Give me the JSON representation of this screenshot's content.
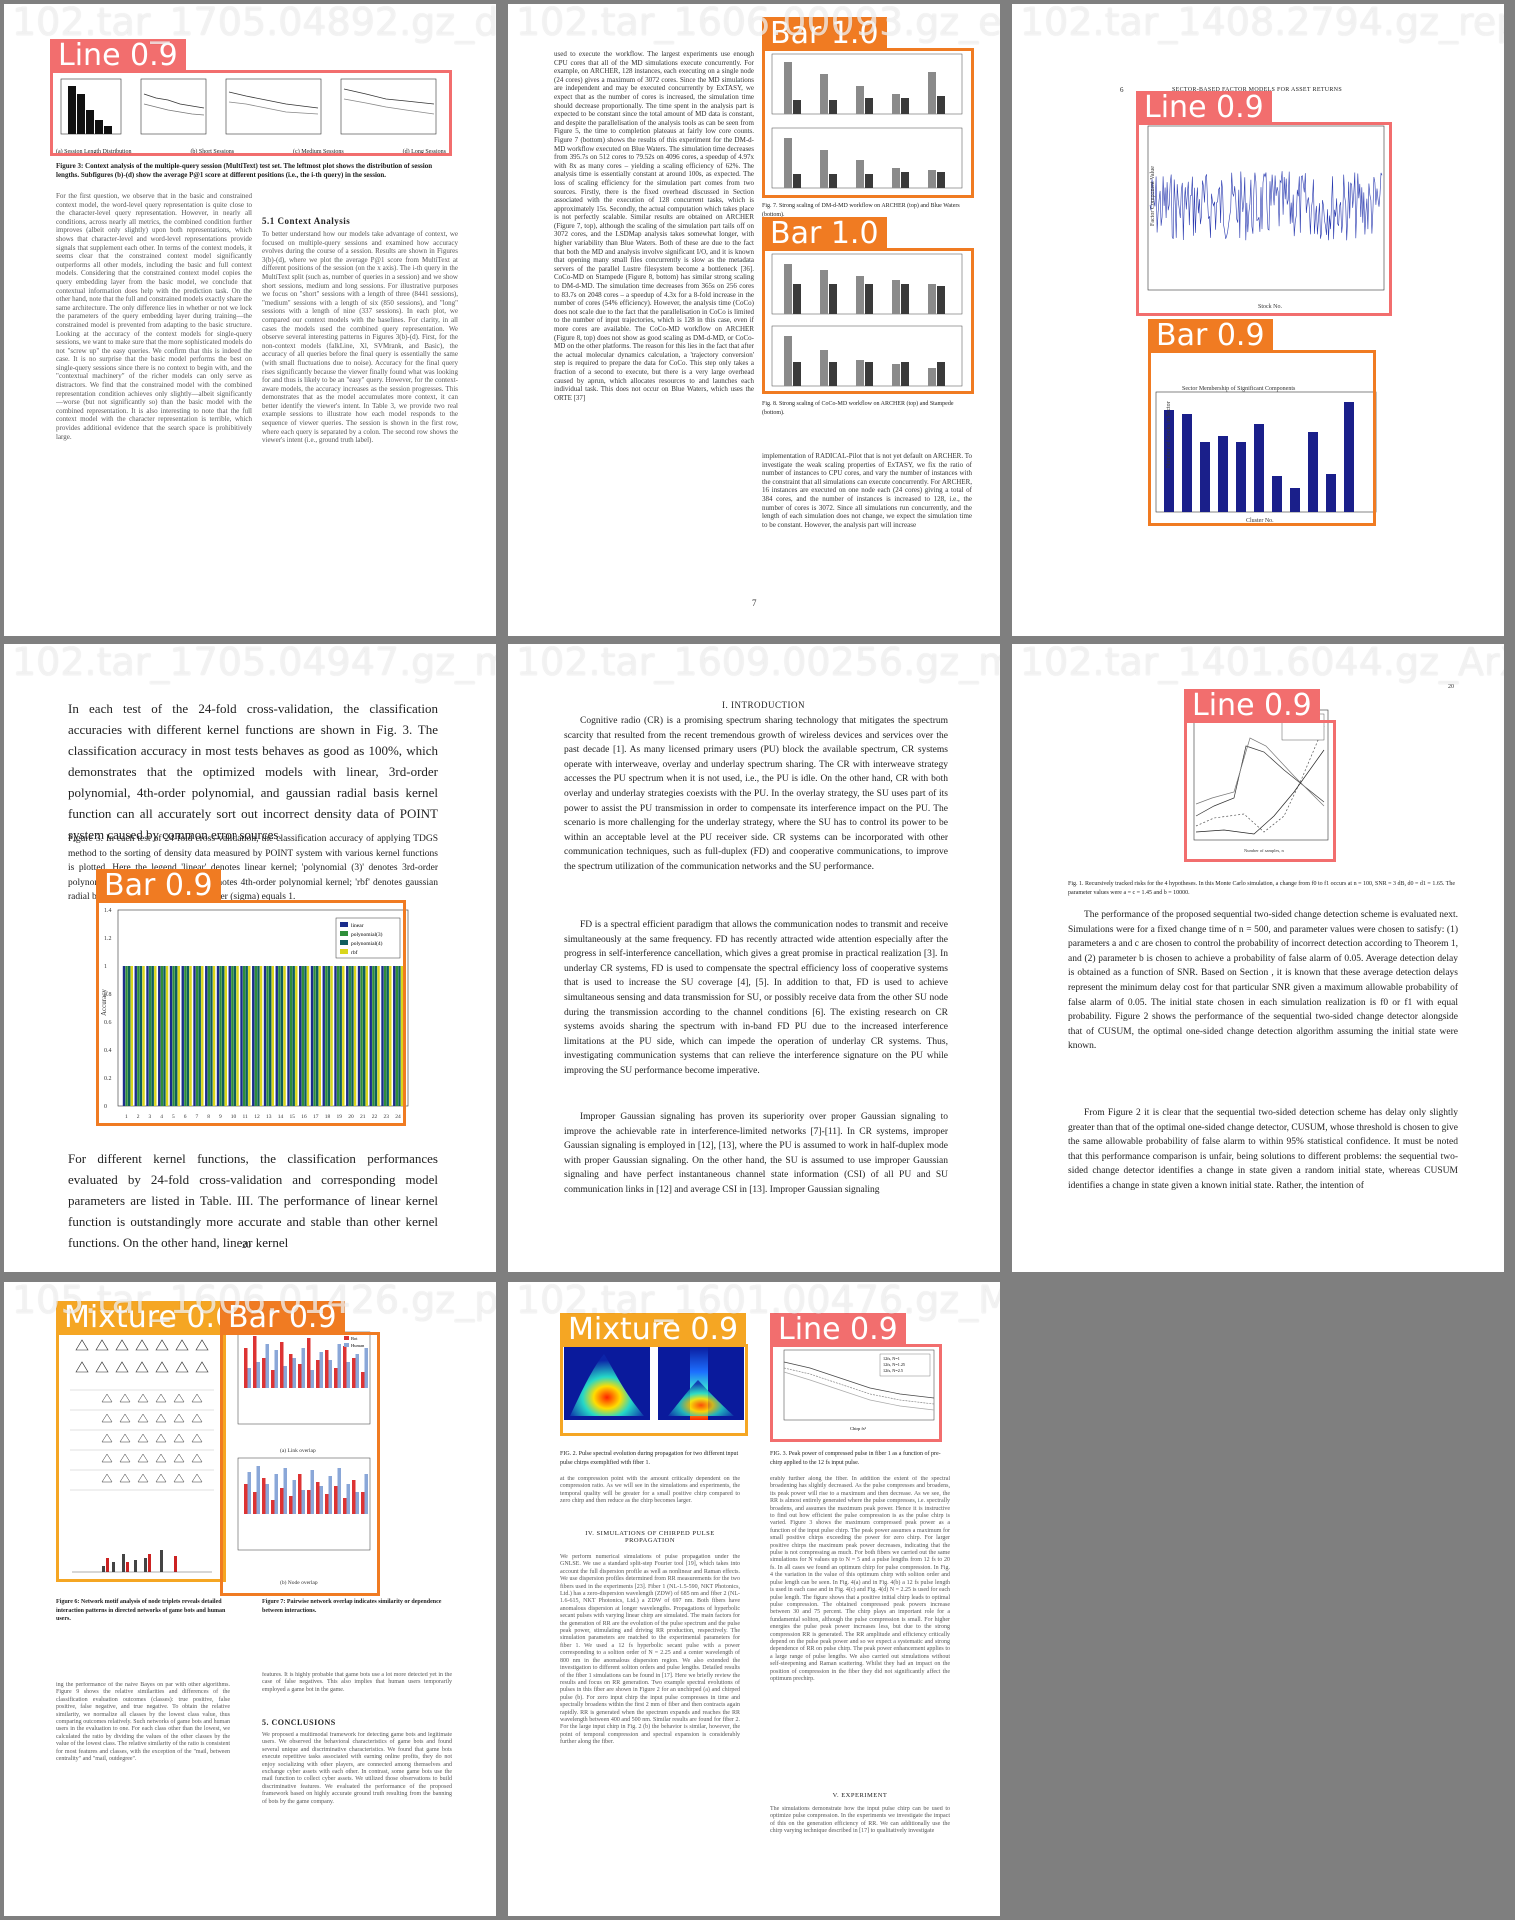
{
  "panels": [
    {
      "title": "102.tar_1705.04892.gz_deep-voice-arxiv_6"
    },
    {
      "title": "102.tar_1606.00093.gz_extasy_6"
    },
    {
      "title": "102.tar_1408.2794.gz_report_5_"
    },
    {
      "title": "102.tar_1705.04947.gz_manuscript_TDGS_10"
    },
    {
      "title": "102.tar_1609.00256.gz_mgaafar_full_duplex"
    },
    {
      "title": "102.tar_1401.6044.gz_ArXiv_two_"
    },
    {
      "title": "105.tar_1606.01426.gz_paper_7_"
    },
    {
      "title": "102.tar_1601.00476.gz_McLenaghanKoenig_1_2"
    }
  ],
  "detections": {
    "p1_line": "Line 0.9",
    "p2_bar_top": "Bar 1.0",
    "p2_bar_bottom": "Bar 1.0",
    "p3_line": "Line 0.9",
    "p3_bar": "Bar 0.9",
    "p4_bar": "Bar 0.9",
    "p6_line": "Line 0.9",
    "p7_mix": "Mixture 0.6",
    "p7_bar": "Bar 0.9",
    "p8_mix": "Mixture 0.9",
    "p8_line": "Line 0.9"
  },
  "p1": {
    "fig_labels": [
      "(a) Session Length Distribution",
      "(b) Short Sessions",
      "(c) Medium Sessions",
      "(d) Long Sessions"
    ],
    "caption": "Figure 3: Context analysis of the multiple-query session (MultiText) test set. The leftmost plot shows the distribution of session lengths. Subfigures (b)-(d) show the average P@1 score at different positions (i.e., the i-th query) in the session.",
    "section": "5.1 Context Analysis"
  },
  "p2": {
    "page_number": "7",
    "fig7_caption": "Fig. 7. Strong scaling of DM-d-MD workflow on ARCHER (top) and Blue Waters (bottom).",
    "fig8_caption": "Fig. 8. Strong scaling of CoCo-MD workflow on ARCHER (top) and Stampede (bottom).",
    "fig7_title": "Figure 7",
    "text_top": "used to execute the workflow. The largest experiments use enough CPU cores that all of the MD simulations execute concurrently."
  },
  "p3": {
    "page_num": "6",
    "header": "SECTOR-BASED FACTOR MODELS FOR ASSET RETURNS",
    "line_xlabel": "Stock No.",
    "line_ylabel": "Factor Component Value",
    "bar_xlabel": "Cluster No.",
    "bar_ylabel": "Number of Stocks in Sector",
    "bar_title": "Sector Membership of Significant Components"
  },
  "p4": {
    "para1": "In each test of the 24-fold cross-validation, the classification accuracies with different kernel functions are shown in Fig. 3. The classification accuracy in most tests behaves as good as 100%, which demonstrates that the optimized models with linear, 3rd-order polynomial, 4th-order polynomial, and gaussian radial basis kernel function can all accurately sort out incorrect density data of POINT system caused by common error sources.",
    "fig_caption": "Figure 3. In each test of 24-fold cross-validation, the classification accuracy of applying TDGS method to the sorting of density data measured by POINT system with various kernel functions is plotted. Here the legend 'linear' denotes linear kernel; 'polynomial (3)' denotes 3rd-order polynomial kernel; 'polynomial (4)' denotes 4th-order polynomial kernel; 'rbf' denotes gaussian radial basis kernel function, the parameter (sigma) equals 1.",
    "para2": "For different kernel functions, the classification performances evaluated by 24-fold cross-validation and corresponding model parameters are listed in Table. III. The performance of linear kernel function is outstandingly more accurate and stable than other kernel functions. On the other hand, linear kernel",
    "page_number": "20",
    "ylabel": "Accuracy",
    "legend": [
      "linear",
      "polynomial(3)",
      "polynomial(4)",
      "rbf"
    ],
    "yticks": [
      "1.4",
      "1.2",
      "1",
      "0.8",
      "0.6",
      "0.4",
      "0.2",
      "0"
    ],
    "xticks": [
      "1",
      "2",
      "3",
      "4",
      "5",
      "6",
      "7",
      "8",
      "9",
      "10",
      "11",
      "12",
      "13",
      "14",
      "15",
      "16",
      "17",
      "18",
      "19",
      "20",
      "21",
      "22",
      "23",
      "24"
    ]
  },
  "p5": {
    "heading": "I. INTRODUCTION",
    "paras": [
      "Cognitive radio (CR) is a promising spectrum sharing technology that mitigates the spectrum scarcity that resulted from the recent tremendous growth of wireless devices and services over the past decade [1]. As many licensed primary users (PU) block the available spectrum, CR systems operate with interweave, overlay and underlay spectrum sharing. The CR with interweave strategy accesses the PU spectrum when it is not used, i.e., the PU is idle. On the other hand, CR with both overlay and underlay strategies coexists with the PU. In the overlay strategy, the SU uses part of its power to assist the PU transmission in order to compensate its interference impact on the PU. The scenario is more challenging for the underlay strategy, where the SU has to control its power to be within an acceptable level at the PU receiver side. CR systems can be incorporated with other communication techniques, such as full-duplex (FD) and cooperative communications, to improve the spectrum utilization of the communication networks and the SU performance.",
      "FD is a spectral efficient paradigm that allows the communication nodes to transmit and receive simultaneously at the same frequency. FD has recently attracted wide attention especially after the progress in self-interference cancellation, which gives a great promise in practical realization [3]. In underlay CR systems, FD is used to compensate the spectral efficiency loss of cooperative systems that is used to increase the SU coverage [4], [5]. In addition to that, FD is used to achieve simultaneous sensing and data transmission for SU, or possibly receive data from the other SU node during the transmission according to the channel conditions [6]. The existing research on CR systems avoids sharing the spectrum with in-band FD PU due to the increased interference limitations at the PU side, which can impede the operation of underlay CR systems. Thus, investigating communication systems that can relieve the interference signature on the PU while improving the SU performance become imperative.",
      "Improper Gaussian signaling has proven its superiority over proper Gaussian signaling to improve the achievable rate in interference-limited networks [7]-[11]. In CR systems, improper Gaussian signaling is employed in [12], [13], where the PU is assumed to work in half-duplex mode with proper Gaussian signaling. On the other hand, the SU is assumed to use improper Gaussian signaling and have perfect instantaneous channel state information (CSI) of all PU and SU communication links in [12] and average CSI in [13]. Improper Gaussian signaling"
    ]
  },
  "p6": {
    "page_number": "20",
    "fig_caption": "Fig. 1. Recursively tracked risks for the 4 hypotheses. In this Monte Carlo simulation, a change from f0 to f1 occurs at n = 100, SNR = 3 dB, d0 = d1 = 1.65. The parameter values were a = c = 1.45 and b = 10000.",
    "xlabel": "Number of samples, n",
    "para1": "The performance of the proposed sequential two-sided change detection scheme is evaluated next. Simulations were for a fixed change time of n = 500, and parameter values were chosen to satisfy: (1) parameters a and c are chosen to control the probability of incorrect detection according to Theorem 1, and (2) parameter b is chosen to achieve a probability of false alarm of 0.05. Average detection delay is obtained as a function of SNR. Based on Section , it is known that these average detection delays represent the minimum delay cost for that particular SNR given a maximum allowable probability of false alarm of 0.05. The initial state chosen in each simulation realization is f0 or f1 with equal probability. Figure 2 shows the performance of the sequential two-sided change detector alongside that of CUSUM, the optimal one-sided change detection algorithm assuming the initial state were known.",
    "para2": "From Figure 2 it is clear that the sequential two-sided detection scheme has delay only slightly greater than that of the optimal one-sided change detector, CUSUM, whose threshold is chosen to give the same allowable probability of false alarm to within 95% statistical confidence. It must be noted that this performance comparison is unfair, being solutions to different problems: the sequential two-sided change detector identifies a change in state given a random initial state, whereas CUSUM identifies a change in state given a known initial state. Rather, the intention of"
  },
  "p7": {
    "fig6_caption": "Figure 6: Network motif analysis of node triplets reveals detailed interaction patterns in directed networks of game bots and human users.",
    "fig7_caption": "Figure 7: Pairwise network overlap indicates similarity or dependence between interactions.",
    "sub_a": "(a) Link overlap",
    "sub_b": "(b) Node overlap",
    "conclusions": "5. CONCLUSIONS",
    "legend": [
      "Bot",
      "Human"
    ]
  },
  "p8": {
    "fig2_caption": "FIG. 2. Pulse spectral evolution during propagation for two different input pulse chirps exemplified with fiber 1.",
    "fig3_caption": "FIG. 3. Peak power of compressed pulse in fiber 1 as a function of pre-chirp applied to the 12 fs input pulse.",
    "section4": "IV. SIMULATIONS OF CHIRPED PULSE PROPAGATION",
    "section5": "V. EXPERIMENT",
    "xlabel": "Chirp fs²",
    "legend": [
      "12fs, N=1",
      "12fs, N=1.25",
      "12fs, N=2.5"
    ]
  }
}
